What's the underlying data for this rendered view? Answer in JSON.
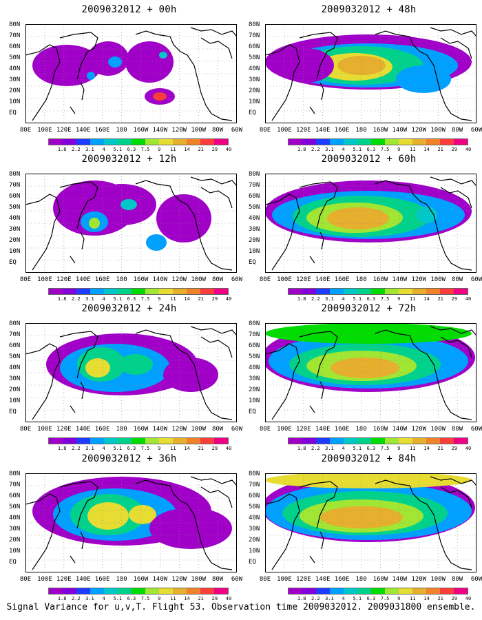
{
  "colors": {
    "scale": [
      "#a000c8",
      "#8200dc",
      "#1e3cff",
      "#00a0ff",
      "#00c8c8",
      "#00d28c",
      "#00dc00",
      "#a0e632",
      "#e6dc32",
      "#e6af2d",
      "#f08228",
      "#fa3c3c",
      "#f00082"
    ]
  },
  "latitude_labels": [
    "80N",
    "70N",
    "60N",
    "50N",
    "40N",
    "30N",
    "20N",
    "10N",
    "EQ"
  ],
  "longitude_labels": [
    "80E",
    "100E",
    "120E",
    "140E",
    "160E",
    "180",
    "160W",
    "140W",
    "120W",
    "100W",
    "80W",
    "60W"
  ],
  "colorbar_labels": [
    "1.8",
    "2.2",
    "3.1",
    "4",
    "5.1",
    "6.3",
    "7.5",
    "9",
    "11",
    "14",
    "21",
    "29",
    "40"
  ],
  "panels": [
    {
      "title": "2009032012 + 00h",
      "spread": 0.15
    },
    {
      "title": "2009032012 + 48h",
      "spread": 0.7
    },
    {
      "title": "2009032012 + 12h",
      "spread": 0.35
    },
    {
      "title": "2009032012 + 60h",
      "spread": 0.8
    },
    {
      "title": "2009032012 + 24h",
      "spread": 0.55
    },
    {
      "title": "2009032012 + 72h",
      "spread": 0.9
    },
    {
      "title": "2009032012 + 36h",
      "spread": 0.65
    },
    {
      "title": "2009032012 + 84h",
      "spread": 1.0
    }
  ],
  "caption": "Signal Variance for u,v,T. Flight 53. Observation time 2009032012. 2009031800 ensemble."
}
